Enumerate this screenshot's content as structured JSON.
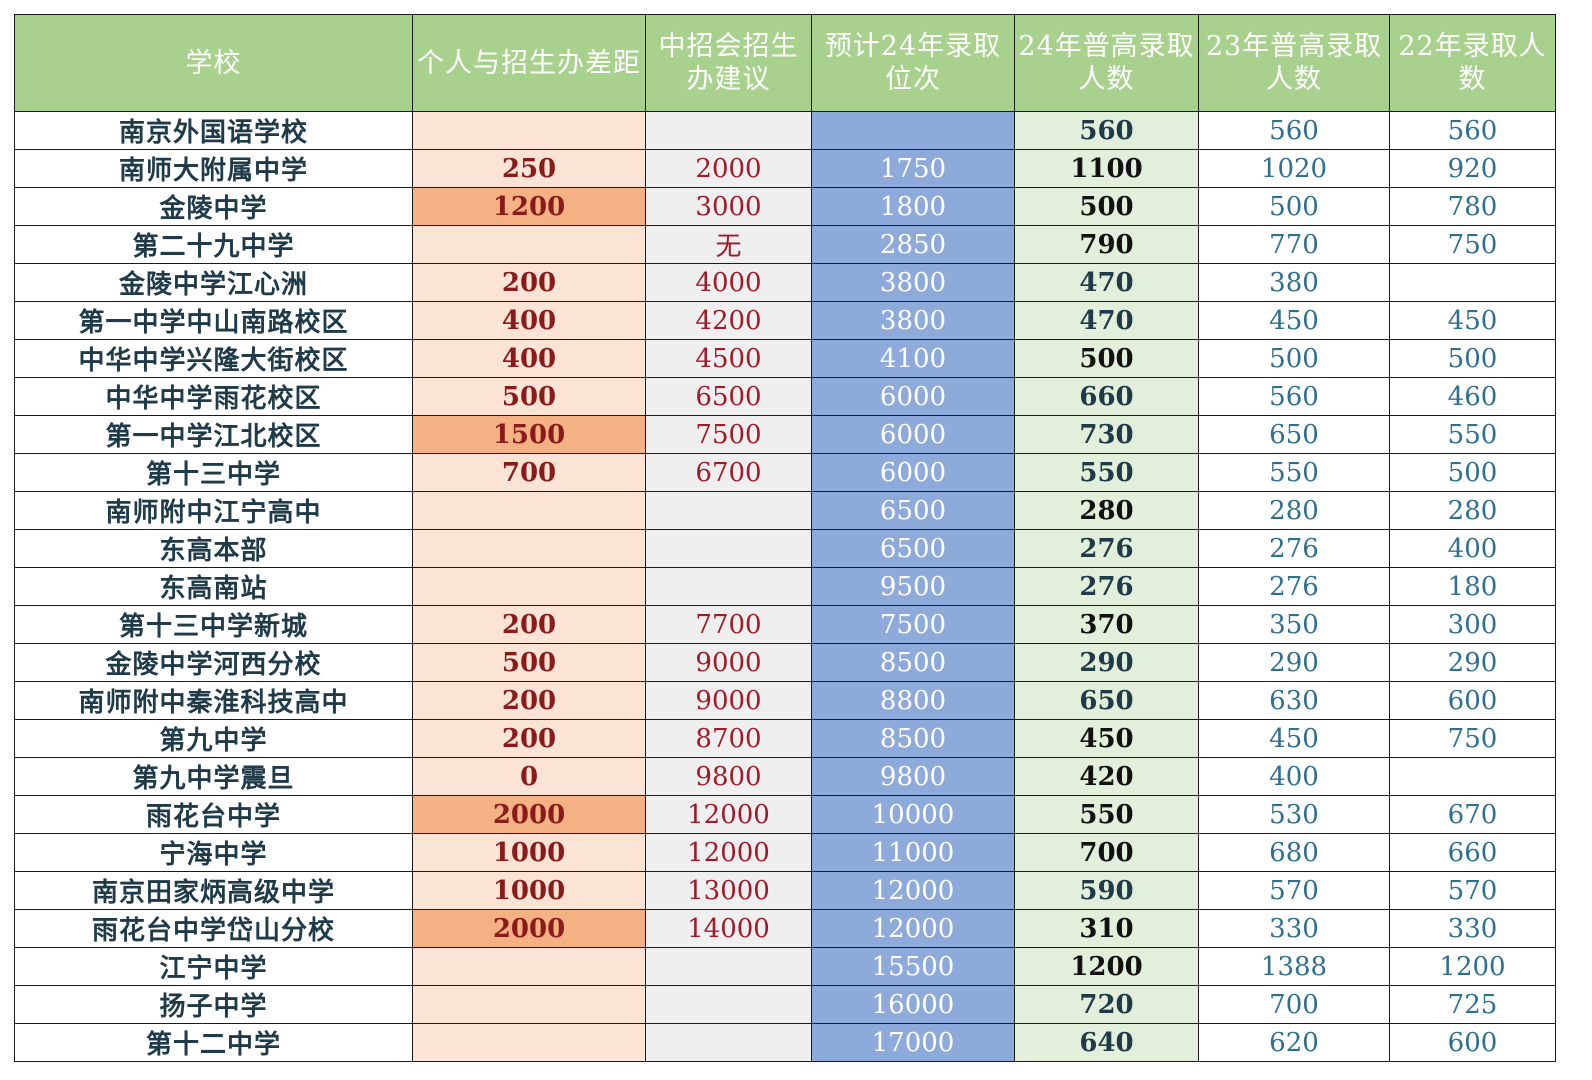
{
  "colors": {
    "header_bg": "#a9d18e",
    "header_text": "#ffffff",
    "gap_bg": "#fbe3d6",
    "gap_highlight_bg": "#f4b183",
    "advice_bg": "#efefef",
    "rank_bg": "#8eaadb",
    "admit24_bg": "#e2efda"
  },
  "headers": {
    "school": "学校",
    "gap": "个人与招生办差距",
    "advice": "中招会招生办建议",
    "rank": "预计24年录取位次",
    "admit24": "24年普高录取人数",
    "admit23": "23年普高录取人数",
    "admit22": "22年录取人数"
  },
  "rows": [
    {
      "school": "南京外国语学校",
      "gap": "",
      "gap_highlight": false,
      "advice": "",
      "rank": "",
      "admit24": "560",
      "admit23": "560",
      "admit22": "560"
    },
    {
      "school": "南师大附属中学",
      "gap": "250",
      "gap_highlight": false,
      "advice": "2000",
      "rank": "1750",
      "admit24": "1100",
      "admit23": "1020",
      "admit22": "920"
    },
    {
      "school": "金陵中学",
      "gap": "1200",
      "gap_highlight": true,
      "advice": "3000",
      "rank": "1800",
      "admit24": "500",
      "admit23": "500",
      "admit22": "780"
    },
    {
      "school": "第二十九中学",
      "gap": "",
      "gap_highlight": false,
      "advice": "无",
      "rank": "2850",
      "admit24": "790",
      "admit23": "770",
      "admit22": "750"
    },
    {
      "school": "金陵中学江心洲",
      "gap": "200",
      "gap_highlight": false,
      "advice": "4000",
      "rank": "3800",
      "admit24": "470",
      "admit23": "380",
      "admit22": ""
    },
    {
      "school": "第一中学中山南路校区",
      "gap": "400",
      "gap_highlight": false,
      "advice": "4200",
      "rank": "3800",
      "admit24": "470",
      "admit23": "450",
      "admit22": "450"
    },
    {
      "school": "中华中学兴隆大街校区",
      "gap": "400",
      "gap_highlight": false,
      "advice": "4500",
      "rank": "4100",
      "admit24": "500",
      "admit23": "500",
      "admit22": "500"
    },
    {
      "school": "中华中学雨花校区",
      "gap": "500",
      "gap_highlight": false,
      "advice": "6500",
      "rank": "6000",
      "admit24": "660",
      "admit23": "560",
      "admit22": "460"
    },
    {
      "school": "第一中学江北校区",
      "gap": "1500",
      "gap_highlight": true,
      "advice": "7500",
      "rank": "6000",
      "admit24": "730",
      "admit23": "650",
      "admit22": "550"
    },
    {
      "school": "第十三中学",
      "gap": "700",
      "gap_highlight": false,
      "advice": "6700",
      "rank": "6000",
      "admit24": "550",
      "admit23": "550",
      "admit22": "500"
    },
    {
      "school": "南师附中江宁高中",
      "gap": "",
      "gap_highlight": false,
      "advice": "",
      "rank": "6500",
      "admit24": "280",
      "admit23": "280",
      "admit22": "280"
    },
    {
      "school": "东高本部",
      "gap": "",
      "gap_highlight": false,
      "advice": "",
      "rank": "6500",
      "admit24": "276",
      "admit23": "276",
      "admit22": "400"
    },
    {
      "school": "东高南站",
      "gap": "",
      "gap_highlight": false,
      "advice": "",
      "rank": "9500",
      "admit24": "276",
      "admit23": "276",
      "admit22": "180"
    },
    {
      "school": "第十三中学新城",
      "gap": "200",
      "gap_highlight": false,
      "advice": "7700",
      "rank": "7500",
      "admit24": "370",
      "admit23": "350",
      "admit22": "300"
    },
    {
      "school": "金陵中学河西分校",
      "gap": "500",
      "gap_highlight": false,
      "advice": "9000",
      "rank": "8500",
      "admit24": "290",
      "admit23": "290",
      "admit22": "290"
    },
    {
      "school": "南师附中秦淮科技高中",
      "gap": "200",
      "gap_highlight": false,
      "advice": "9000",
      "rank": "8800",
      "admit24": "650",
      "admit23": "630",
      "admit22": "600"
    },
    {
      "school": "第九中学",
      "gap": "200",
      "gap_highlight": false,
      "advice": "8700",
      "rank": "8500",
      "admit24": "450",
      "admit23": "450",
      "admit22": "750"
    },
    {
      "school": "第九中学震旦",
      "gap": "0",
      "gap_highlight": false,
      "advice": "9800",
      "rank": "9800",
      "admit24": "420",
      "admit23": "400",
      "admit22": ""
    },
    {
      "school": "雨花台中学",
      "gap": "2000",
      "gap_highlight": true,
      "advice": "12000",
      "rank": "10000",
      "admit24": "550",
      "admit23": "530",
      "admit22": "670"
    },
    {
      "school": "宁海中学",
      "gap": "1000",
      "gap_highlight": false,
      "advice": "12000",
      "rank": "11000",
      "admit24": "700",
      "admit23": "680",
      "admit22": "660"
    },
    {
      "school": "南京田家炳高级中学",
      "gap": "1000",
      "gap_highlight": false,
      "advice": "13000",
      "rank": "12000",
      "admit24": "590",
      "admit23": "570",
      "admit22": "570"
    },
    {
      "school": "雨花台中学岱山分校",
      "gap": "2000",
      "gap_highlight": true,
      "advice": "14000",
      "rank": "12000",
      "admit24": "310",
      "admit23": "330",
      "admit22": "330"
    },
    {
      "school": "江宁中学",
      "gap": "",
      "gap_highlight": false,
      "advice": "",
      "rank": "15500",
      "admit24": "1200",
      "admit23": "1388",
      "admit22": "1200"
    },
    {
      "school": "扬子中学",
      "gap": "",
      "gap_highlight": false,
      "advice": "",
      "rank": "16000",
      "admit24": "720",
      "admit23": "700",
      "admit22": "725"
    },
    {
      "school": "第十二中学",
      "gap": "",
      "gap_highlight": false,
      "advice": "",
      "rank": "17000",
      "admit24": "640",
      "admit23": "620",
      "admit22": "600"
    }
  ]
}
